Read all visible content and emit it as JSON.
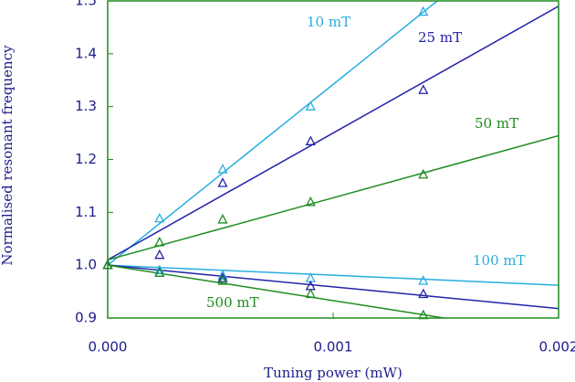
{
  "chart_data": {
    "type": "scatter-fit",
    "x_label": "Tuning power (mW)",
    "y_label": "Normalised resonant frequency",
    "xlim": [
      0,
      0.002
    ],
    "ylim": [
      0.9,
      1.5
    ],
    "xticks": [
      {
        "value": 0,
        "label": "0.000"
      },
      {
        "value": 0.001,
        "label": "0.001"
      },
      {
        "value": 0.002,
        "label": "0.002"
      }
    ],
    "yticks": [
      0.9,
      {
        "value": 1.0,
        "label": "1.0"
      },
      1.1,
      1.2,
      1.3,
      1.4,
      1.5
    ],
    "x": [
      0,
      0.00023,
      0.00051,
      0.0009,
      0.0014
    ],
    "frame_color": "#1f8c1f",
    "series": [
      {
        "name": "10 mT",
        "color": "#27aee0",
        "values": [
          1.0,
          1.088,
          1.181,
          1.3,
          1.479
        ],
        "fit": {
          "x": [
            0,
            0.002
          ],
          "y": [
            1.0,
            1.684
          ]
        }
      },
      {
        "name": "25 mT",
        "color": "#2222aa",
        "values": [
          1.0,
          1.019,
          1.155,
          1.234,
          1.331
        ],
        "fit": {
          "x": [
            0,
            0.002
          ],
          "y": [
            1.01,
            1.49
          ]
        }
      },
      {
        "name": "50 mT",
        "color": "#1f8c1f",
        "values": [
          1.0,
          1.043,
          1.086,
          1.119,
          1.171
        ],
        "fit": {
          "x": [
            0,
            0.002
          ],
          "y": [
            1.01,
            1.245
          ]
        }
      },
      {
        "name": "100 mT",
        "color": "#27aee0",
        "values": [
          1.0,
          0.99,
          0.98,
          0.975,
          0.97
        ],
        "fit": {
          "x": [
            0,
            0.002
          ],
          "y": [
            1.0,
            0.962
          ]
        }
      },
      {
        "color": "#2222aa",
        "values": [
          1.0,
          0.985,
          0.975,
          0.96,
          0.945
        ],
        "fit": {
          "x": [
            0,
            0.002
          ],
          "y": [
            1.0,
            0.918
          ]
        }
      },
      {
        "name": "500 mT",
        "color": "#1f8c1f",
        "values": [
          1.0,
          0.985,
          0.97,
          0.945,
          0.905
        ],
        "fit": {
          "x": [
            0,
            0.002
          ],
          "y": [
            1.0,
            0.866
          ]
        }
      }
    ]
  }
}
